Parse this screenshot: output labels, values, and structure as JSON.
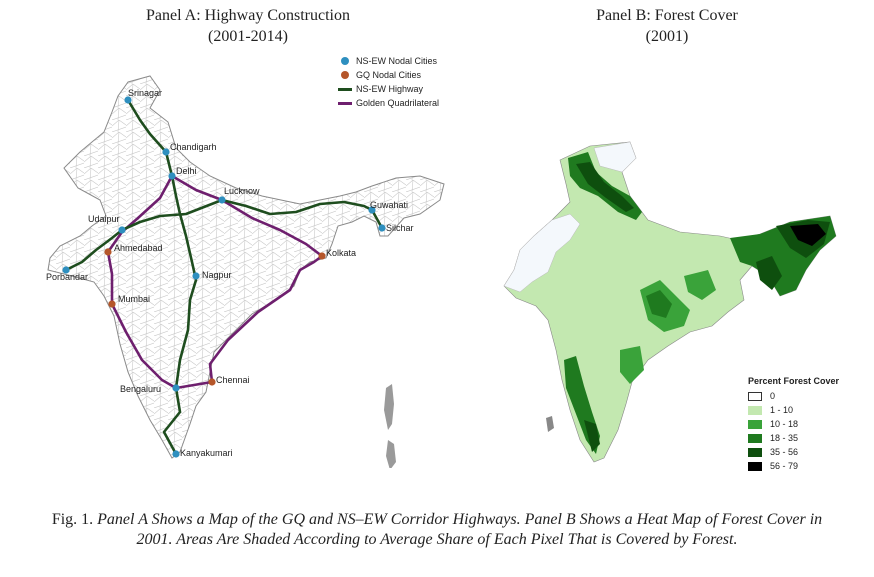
{
  "panel_a": {
    "title_line1": "Panel A: Highway Construction",
    "title_line2": "(2001-2014)",
    "legend": [
      {
        "label": "NS-EW Nodal Cities",
        "symbol": "dot",
        "color": "#2e8fbf"
      },
      {
        "label": "GQ Nodal Cities",
        "symbol": "dot",
        "color": "#b5562a"
      },
      {
        "label": "NS-EW Highway",
        "symbol": "line",
        "color": "#1e4d1e"
      },
      {
        "label": "Golden Quadrilateral",
        "symbol": "line",
        "color": "#6e1f6e"
      }
    ],
    "cities": {
      "srinagar": "Srinagar",
      "chandigarh": "Chandigarh",
      "delhi": "Delhi",
      "lucknow": "Lucknow",
      "guwahati": "Guwahati",
      "silchar": "Silchar",
      "udaipur": "Udaipur",
      "ahmedabad": "Ahmedabad",
      "kolkata": "Kolkata",
      "porbandar": "Porbandar",
      "nagpur": "Nagpur",
      "mumbai": "Mumbai",
      "bengaluru": "Bengaluru",
      "chennai": "Chennai",
      "kanyakumari": "Kanyakumari"
    }
  },
  "panel_b": {
    "title_line1": "Panel B: Forest Cover",
    "title_line2": "(2001)",
    "legend_title": "Percent Forest Cover",
    "legend": [
      {
        "label": "0",
        "color": "#ffffff"
      },
      {
        "label": "1 - 10",
        "color": "#c3e8b0"
      },
      {
        "label": "10 - 18",
        "color": "#3aa33a"
      },
      {
        "label": "18 - 35",
        "color": "#1f7a1f"
      },
      {
        "label": "35 - 56",
        "color": "#0e4f0e"
      },
      {
        "label": "56 - 79",
        "color": "#000000"
      }
    ]
  },
  "caption": {
    "prefix": "Fig. 1. ",
    "text": "Panel A Shows a Map of the GQ and NS–EW Corridor Highways. Panel B Shows a Heat Map of Forest Cover in 2001. Areas Are Shaded According to Average Share of Each Pixel That is Covered by Forest."
  }
}
